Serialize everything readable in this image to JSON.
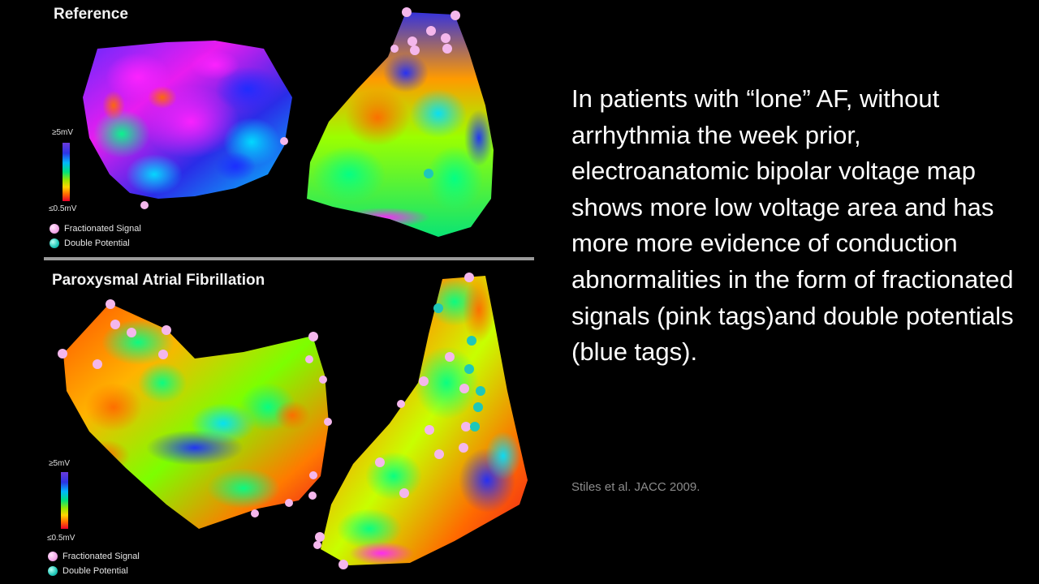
{
  "panels": {
    "top": {
      "title": "Reference",
      "scale_max": "≥5mV",
      "scale_min": "≤0.5mV",
      "legend": [
        {
          "label": "Fractionated Signal",
          "color": "#f2a6e8"
        },
        {
          "label": "Double Potential",
          "color": "#1fc7b8"
        }
      ]
    },
    "bottom": {
      "title": "Paroxysmal Atrial Fibrillation",
      "scale_max": "≥5mV",
      "scale_min": "≤0.5mV",
      "legend": [
        {
          "label": "Fractionated Signal",
          "color": "#f2a6e8"
        },
        {
          "label": "Double Potential",
          "color": "#1fc7b8"
        }
      ]
    }
  },
  "caption": "In patients with “lone” AF, without arrhythmia the week prior, electroanatomic bipolar voltage map shows more low voltage area and has more more evidence of conduction abnormalities in the form of fractionated signals (pink tags)and double potentials (blue tags).",
  "citation": "Stiles et al. JACC 2009."
}
